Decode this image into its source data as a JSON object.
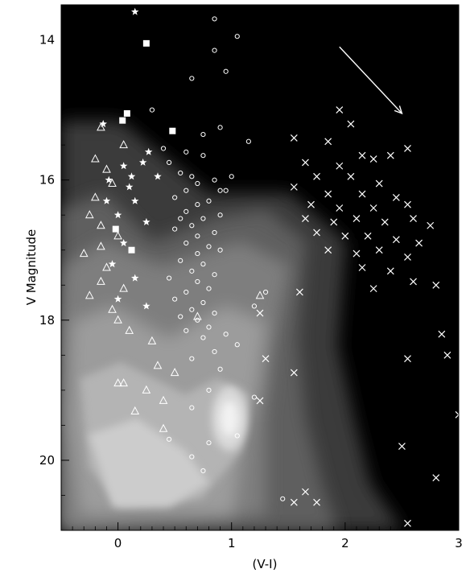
{
  "chart_data": {
    "type": "scatter",
    "title": "",
    "xlabel": "(V-I)",
    "ylabel": "V Magnitude",
    "xlim": [
      -0.5,
      3.0
    ],
    "ylim": [
      21.0,
      13.5
    ],
    "y_inverted": true,
    "grid": false,
    "background": "density contour map (grayscale) of field stars, peak near (V-I)=0.95, V=19.4",
    "x_ticks": [
      {
        "value": 0,
        "label": "0"
      },
      {
        "value": 1,
        "label": "1"
      },
      {
        "value": 2,
        "label": "2"
      },
      {
        "value": 3,
        "label": "3"
      }
    ],
    "y_ticks": [
      {
        "value": 14,
        "label": "14"
      },
      {
        "value": 16,
        "label": "16"
      },
      {
        "value": 18,
        "label": "18"
      },
      {
        "value": 20,
        "label": "20"
      }
    ],
    "annotation_arrow": {
      "from": [
        1.95,
        14.1
      ],
      "to": [
        2.5,
        15.05
      ]
    },
    "series": [
      {
        "marker": "square",
        "color": "#ffffff",
        "points": [
          [
            0.25,
            14.05
          ],
          [
            0.04,
            15.15
          ],
          [
            0.08,
            15.05
          ],
          [
            0.48,
            15.3
          ],
          [
            -0.02,
            16.7
          ],
          [
            0.12,
            17.0
          ]
        ]
      },
      {
        "marker": "star",
        "color": "#ffffff",
        "points": [
          [
            0.15,
            13.6
          ],
          [
            -0.13,
            15.2
          ],
          [
            0.27,
            15.6
          ],
          [
            0.05,
            15.8
          ],
          [
            -0.08,
            16.0
          ],
          [
            0.1,
            16.1
          ],
          [
            0.15,
            16.3
          ],
          [
            0.0,
            16.5
          ],
          [
            0.25,
            16.6
          ],
          [
            0.05,
            16.9
          ],
          [
            -0.05,
            17.2
          ],
          [
            0.15,
            17.4
          ],
          [
            0.0,
            17.7
          ],
          [
            0.25,
            17.8
          ],
          [
            -0.1,
            16.3
          ],
          [
            0.12,
            15.95
          ],
          [
            0.35,
            15.95
          ],
          [
            0.22,
            15.75
          ]
        ]
      },
      {
        "marker": "triangle",
        "color": "#ffffff",
        "points": [
          [
            -0.15,
            15.25
          ],
          [
            0.05,
            15.5
          ],
          [
            -0.2,
            15.7
          ],
          [
            -0.1,
            15.85
          ],
          [
            -0.05,
            16.05
          ],
          [
            -0.2,
            16.25
          ],
          [
            -0.25,
            16.5
          ],
          [
            -0.15,
            16.65
          ],
          [
            0.0,
            16.8
          ],
          [
            -0.15,
            16.95
          ],
          [
            -0.3,
            17.05
          ],
          [
            -0.1,
            17.25
          ],
          [
            -0.15,
            17.45
          ],
          [
            0.05,
            17.55
          ],
          [
            -0.25,
            17.65
          ],
          [
            -0.05,
            17.85
          ],
          [
            0.0,
            18.0
          ],
          [
            0.1,
            18.15
          ],
          [
            0.3,
            18.3
          ],
          [
            0.35,
            18.65
          ],
          [
            0.5,
            18.75
          ],
          [
            0.0,
            18.9
          ],
          [
            0.05,
            18.9
          ],
          [
            0.25,
            19.0
          ],
          [
            0.4,
            19.15
          ],
          [
            0.15,
            19.3
          ],
          [
            0.4,
            19.55
          ],
          [
            0.7,
            17.95
          ],
          [
            1.25,
            17.65
          ]
        ]
      },
      {
        "marker": "circle",
        "color": "#ffffff",
        "points": [
          [
            0.85,
            13.7
          ],
          [
            1.05,
            13.95
          ],
          [
            0.85,
            14.15
          ],
          [
            0.95,
            14.45
          ],
          [
            0.65,
            14.55
          ],
          [
            0.3,
            15.0
          ],
          [
            0.75,
            15.35
          ],
          [
            0.9,
            15.25
          ],
          [
            1.15,
            15.45
          ],
          [
            0.4,
            15.55
          ],
          [
            0.6,
            15.6
          ],
          [
            0.45,
            15.75
          ],
          [
            0.75,
            15.65
          ],
          [
            0.55,
            15.9
          ],
          [
            0.65,
            15.95
          ],
          [
            0.85,
            16.0
          ],
          [
            1.0,
            15.95
          ],
          [
            0.7,
            16.05
          ],
          [
            0.6,
            16.15
          ],
          [
            0.9,
            16.15
          ],
          [
            0.5,
            16.25
          ],
          [
            0.8,
            16.3
          ],
          [
            0.7,
            16.35
          ],
          [
            0.6,
            16.45
          ],
          [
            0.9,
            16.5
          ],
          [
            0.75,
            16.55
          ],
          [
            0.65,
            16.65
          ],
          [
            0.5,
            16.7
          ],
          [
            0.85,
            16.75
          ],
          [
            0.7,
            16.8
          ],
          [
            0.6,
            16.9
          ],
          [
            0.8,
            16.95
          ],
          [
            0.9,
            17.0
          ],
          [
            0.7,
            17.05
          ],
          [
            0.55,
            17.15
          ],
          [
            0.75,
            17.2
          ],
          [
            0.65,
            17.3
          ],
          [
            0.85,
            17.35
          ],
          [
            0.45,
            17.4
          ],
          [
            0.7,
            17.45
          ],
          [
            0.8,
            17.55
          ],
          [
            0.6,
            17.6
          ],
          [
            0.5,
            17.7
          ],
          [
            0.75,
            17.75
          ],
          [
            0.65,
            17.85
          ],
          [
            0.85,
            17.9
          ],
          [
            0.55,
            17.95
          ],
          [
            0.7,
            18.0
          ],
          [
            0.8,
            18.1
          ],
          [
            0.6,
            18.15
          ],
          [
            0.75,
            18.25
          ],
          [
            0.95,
            18.2
          ],
          [
            1.3,
            17.6
          ],
          [
            1.2,
            17.8
          ],
          [
            1.05,
            18.35
          ],
          [
            0.85,
            18.45
          ],
          [
            0.65,
            18.55
          ],
          [
            0.9,
            18.7
          ],
          [
            0.8,
            19.0
          ],
          [
            0.65,
            19.25
          ],
          [
            1.2,
            19.1
          ],
          [
            0.45,
            19.7
          ],
          [
            0.8,
            19.75
          ],
          [
            0.65,
            19.95
          ],
          [
            0.75,
            20.15
          ],
          [
            1.05,
            19.65
          ],
          [
            1.45,
            20.55
          ],
          [
            0.95,
            16.15
          ],
          [
            0.55,
            16.55
          ]
        ]
      },
      {
        "marker": "x",
        "color": "#ffffff",
        "points": [
          [
            1.55,
            15.4
          ],
          [
            1.95,
            15.0
          ],
          [
            2.05,
            15.2
          ],
          [
            1.85,
            15.45
          ],
          [
            2.15,
            15.65
          ],
          [
            1.65,
            15.75
          ],
          [
            1.95,
            15.8
          ],
          [
            2.25,
            15.7
          ],
          [
            2.4,
            15.65
          ],
          [
            2.55,
            15.55
          ],
          [
            1.75,
            15.95
          ],
          [
            2.05,
            15.95
          ],
          [
            2.3,
            16.05
          ],
          [
            1.55,
            16.1
          ],
          [
            1.85,
            16.2
          ],
          [
            2.15,
            16.2
          ],
          [
            2.45,
            16.25
          ],
          [
            1.7,
            16.35
          ],
          [
            1.95,
            16.4
          ],
          [
            2.25,
            16.4
          ],
          [
            2.55,
            16.35
          ],
          [
            1.65,
            16.55
          ],
          [
            1.9,
            16.6
          ],
          [
            2.1,
            16.55
          ],
          [
            2.35,
            16.6
          ],
          [
            2.6,
            16.55
          ],
          [
            2.75,
            16.65
          ],
          [
            1.75,
            16.75
          ],
          [
            2.0,
            16.8
          ],
          [
            2.2,
            16.8
          ],
          [
            2.45,
            16.85
          ],
          [
            2.65,
            16.9
          ],
          [
            1.85,
            17.0
          ],
          [
            2.1,
            17.05
          ],
          [
            2.3,
            17.0
          ],
          [
            2.55,
            17.1
          ],
          [
            2.15,
            17.25
          ],
          [
            2.4,
            17.3
          ],
          [
            2.6,
            17.45
          ],
          [
            2.25,
            17.55
          ],
          [
            2.8,
            17.5
          ],
          [
            1.6,
            17.6
          ],
          [
            1.25,
            17.9
          ],
          [
            1.3,
            18.55
          ],
          [
            1.55,
            18.75
          ],
          [
            1.25,
            19.15
          ],
          [
            2.55,
            18.55
          ],
          [
            2.85,
            18.2
          ],
          [
            2.9,
            18.5
          ],
          [
            3.0,
            19.35
          ],
          [
            2.5,
            19.8
          ],
          [
            1.65,
            20.45
          ],
          [
            1.75,
            20.6
          ],
          [
            1.55,
            20.6
          ],
          [
            2.8,
            20.25
          ],
          [
            2.55,
            20.9
          ]
        ]
      }
    ]
  }
}
